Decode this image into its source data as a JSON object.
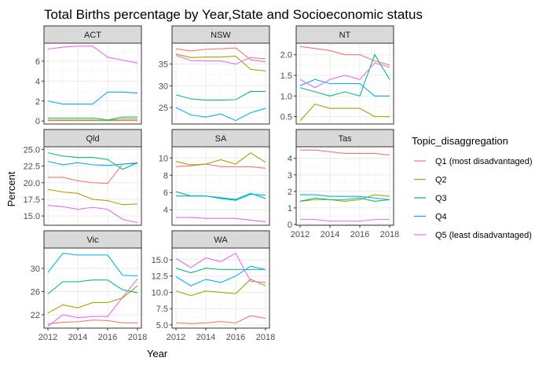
{
  "chart_data": {
    "type": "line",
    "title": "Total Births percentage by Year,State and Socioeconomic status",
    "xlabel": "Year",
    "ylabel": "Percent",
    "x": [
      2012,
      2013,
      2014,
      2015,
      2016,
      2017,
      2018
    ],
    "x_ticks": [
      "2012",
      "2014",
      "2016",
      "2018"
    ],
    "grid": true,
    "legend": {
      "title": "Topic_disaggregation",
      "position": "right",
      "entries": [
        {
          "name": "Q1 (most disadvantaged)",
          "color": "#F8766D"
        },
        {
          "name": "Q2",
          "color": "#A3A500"
        },
        {
          "name": "Q3",
          "color": "#00BF7D"
        },
        {
          "name": "Q4",
          "color": "#00B0F6"
        },
        {
          "name": "Q5 (least disadvantaged)",
          "color": "#E76BF3"
        }
      ]
    },
    "panels": [
      {
        "label": "ACT",
        "ylim": [
          -0.3,
          7.8
        ],
        "y_ticks": [
          0,
          2,
          4,
          6
        ],
        "series": [
          {
            "name": "Q1 (most disadvantaged)",
            "values": [
              0.05,
              0.05,
              0.05,
              0.05,
              0.05,
              0.05,
              0.05
            ]
          },
          {
            "name": "Q2",
            "values": [
              0.1,
              0.1,
              0.1,
              0.1,
              0.05,
              0.2,
              0.2
            ]
          },
          {
            "name": "Q3",
            "values": [
              0.3,
              0.3,
              0.3,
              0.3,
              0.1,
              0.4,
              0.4
            ]
          },
          {
            "name": "Q4",
            "values": [
              2.0,
              1.7,
              1.7,
              1.7,
              2.9,
              2.9,
              2.8
            ]
          },
          {
            "name": "Q5 (least disadvantaged)",
            "values": [
              7.2,
              7.4,
              7.5,
              7.5,
              6.4,
              6.1,
              5.8
            ]
          }
        ]
      },
      {
        "label": "NSW",
        "ylim": [
          21.2,
          39.8
        ],
        "y_ticks": [
          25,
          30,
          35
        ],
        "series": [
          {
            "name": "Q1 (most disadvantaged)",
            "values": [
              38.5,
              38.0,
              38.4,
              38.5,
              38.7,
              36.0,
              35.5
            ]
          },
          {
            "name": "Q2",
            "values": [
              37.3,
              36.5,
              36.6,
              36.6,
              36.8,
              33.8,
              33.4
            ]
          },
          {
            "name": "Q3",
            "values": [
              27.9,
              27.0,
              26.7,
              26.7,
              26.8,
              28.7,
              28.7
            ]
          },
          {
            "name": "Q4",
            "values": [
              25.0,
              23.3,
              22.8,
              23.5,
              22.0,
              23.8,
              24.8
            ]
          },
          {
            "name": "Q5 (least disadvantaged)",
            "values": [
              37.0,
              35.8,
              35.7,
              35.7,
              35.0,
              36.5,
              36.2
            ]
          }
        ]
      },
      {
        "label": "NT",
        "ylim": [
          0.32,
          2.28
        ],
        "y_ticks": [
          0.5,
          1.0,
          1.5,
          2.0
        ],
        "y_tick_labels": [
          "0.5",
          "1.0",
          "1.5",
          "2.0"
        ],
        "series": [
          {
            "name": "Q1 (most disadvantaged)",
            "values": [
              2.2,
              2.15,
              2.1,
              2.0,
              2.0,
              1.85,
              1.75
            ]
          },
          {
            "name": "Q2",
            "values": [
              0.4,
              0.8,
              0.7,
              0.7,
              0.7,
              0.5,
              0.5
            ]
          },
          {
            "name": "Q3",
            "values": [
              1.2,
              1.1,
              1.0,
              1.1,
              1.0,
              2.0,
              1.4
            ]
          },
          {
            "name": "Q4",
            "values": [
              1.25,
              1.4,
              1.3,
              1.3,
              1.3,
              1.0,
              1.0
            ]
          },
          {
            "name": "Q5 (least disadvantaged)",
            "values": [
              1.4,
              1.2,
              1.4,
              1.5,
              1.4,
              1.8,
              1.7
            ]
          }
        ]
      },
      {
        "label": "Qld",
        "ylim": [
          13.6,
          25.4
        ],
        "y_ticks": [
          15.0,
          17.5,
          20.0,
          22.5,
          25.0
        ],
        "y_tick_labels": [
          "15.0",
          "17.5",
          "20.0",
          "22.5",
          "25.0"
        ],
        "series": [
          {
            "name": "Q1 (most disadvantaged)",
            "values": [
              20.8,
              20.8,
              20.3,
              20.0,
              19.9,
              22.8,
              23.0
            ]
          },
          {
            "name": "Q2",
            "values": [
              19.0,
              18.6,
              18.4,
              17.5,
              17.3,
              16.7,
              16.8
            ]
          },
          {
            "name": "Q3",
            "values": [
              24.5,
              24.0,
              23.8,
              23.8,
              23.5,
              22.0,
              23.0
            ]
          },
          {
            "name": "Q4",
            "values": [
              23.2,
              22.7,
              23.0,
              22.7,
              22.6,
              22.8,
              22.9
            ]
          },
          {
            "name": "Q5 (least disadvantaged)",
            "values": [
              16.6,
              16.4,
              16.0,
              16.3,
              16.0,
              14.5,
              14.0
            ]
          }
        ]
      },
      {
        "label": "SA",
        "ylim": [
          2.2,
          11.3
        ],
        "y_ticks": [
          4,
          6,
          8,
          10
        ],
        "series": [
          {
            "name": "Q1 (most disadvantaged)",
            "values": [
              9.0,
              9.1,
              9.3,
              9.0,
              9.0,
              9.0,
              8.8
            ]
          },
          {
            "name": "Q2",
            "values": [
              9.6,
              9.2,
              9.3,
              9.8,
              9.3,
              10.6,
              9.5
            ]
          },
          {
            "name": "Q3",
            "values": [
              6.1,
              5.6,
              5.6,
              5.3,
              5.1,
              5.8,
              5.7
            ]
          },
          {
            "name": "Q4",
            "values": [
              5.6,
              5.6,
              5.6,
              5.4,
              5.2,
              5.9,
              5.3
            ]
          },
          {
            "name": "Q5 (least disadvantaged)",
            "values": [
              3.1,
              3.1,
              3.0,
              3.0,
              3.0,
              2.8,
              2.6
            ]
          }
        ]
      },
      {
        "label": "Tas",
        "ylim": [
          -0.05,
          4.7
        ],
        "y_ticks": [
          0,
          1,
          2,
          3,
          4
        ],
        "series": [
          {
            "name": "Q1 (most disadvantaged)",
            "values": [
              4.5,
              4.5,
              4.4,
              4.3,
              4.3,
              4.3,
              4.2
            ]
          },
          {
            "name": "Q2",
            "values": [
              1.4,
              1.5,
              1.5,
              1.4,
              1.5,
              1.8,
              1.7
            ]
          },
          {
            "name": "Q3",
            "values": [
              1.4,
              1.6,
              1.5,
              1.5,
              1.6,
              1.4,
              1.5
            ]
          },
          {
            "name": "Q4",
            "values": [
              1.8,
              1.8,
              1.7,
              1.7,
              1.7,
              1.6,
              1.5
            ]
          },
          {
            "name": "Q5 (least disadvantaged)",
            "values": [
              0.3,
              0.3,
              0.2,
              0.2,
              0.2,
              0.3,
              0.3
            ]
          }
        ]
      },
      {
        "label": "Vic",
        "ylim": [
          19.7,
          33.5
        ],
        "y_ticks": [
          22,
          26,
          30
        ],
        "series": [
          {
            "name": "Q1 (most disadvantaged)",
            "values": [
              20.4,
              20.7,
              20.8,
              21.1,
              21.0,
              20.6,
              20.6
            ]
          },
          {
            "name": "Q2",
            "values": [
              22.3,
              23.7,
              23.2,
              24.1,
              24.1,
              24.9,
              27.0
            ]
          },
          {
            "name": "Q3",
            "values": [
              25.6,
              27.7,
              27.7,
              28.0,
              28.0,
              26.3,
              25.8
            ]
          },
          {
            "name": "Q4",
            "values": [
              29.3,
              32.6,
              32.3,
              32.3,
              32.3,
              28.8,
              28.7
            ]
          },
          {
            "name": "Q5 (least disadvantaged)",
            "values": [
              20.0,
              22.0,
              21.5,
              21.7,
              21.7,
              25.0,
              28.2
            ]
          }
        ]
      },
      {
        "label": "WA",
        "ylim": [
          4.5,
          16.8
        ],
        "y_ticks": [
          5.0,
          7.5,
          10.0,
          12.5,
          15.0
        ],
        "y_tick_labels": [
          "5.0",
          "7.5",
          "10.0",
          "12.5",
          "15.0"
        ],
        "series": [
          {
            "name": "Q1 (most disadvantaged)",
            "values": [
              5.3,
              5.2,
              5.3,
              5.5,
              5.3,
              6.4,
              6.0
            ]
          },
          {
            "name": "Q2",
            "values": [
              10.2,
              9.5,
              10.2,
              10.0,
              9.8,
              12.0,
              11.0
            ]
          },
          {
            "name": "Q3",
            "values": [
              13.7,
              13.0,
              13.7,
              13.5,
              13.5,
              13.5,
              13.5
            ]
          },
          {
            "name": "Q4",
            "values": [
              12.4,
              11.0,
              12.0,
              11.5,
              12.5,
              14.0,
              13.5
            ]
          },
          {
            "name": "Q5 (least disadvantaged)",
            "values": [
              15.2,
              13.8,
              15.3,
              14.7,
              16.0,
              11.7,
              11.5
            ]
          }
        ]
      }
    ]
  }
}
